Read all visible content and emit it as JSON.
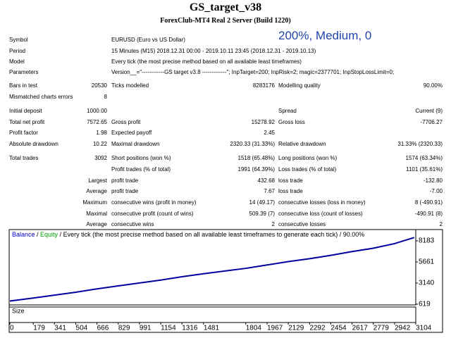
{
  "header": {
    "title": "GS_target_v38",
    "subtitle": "ForexClub-MT4 Real 2 Server (Build 1220)",
    "overlay": "200%, Medium, 0"
  },
  "info": [
    [
      "Symbol",
      "EURUSD (Euro vs US Dollar)"
    ],
    [
      "Period",
      "15 Minutes (M15) 2018.12.31 00:00 - 2019.10.11 23:45 (2018.12.31 - 2019.10.13)"
    ],
    [
      "Model",
      "Every tick (the most precise method based on all available least timeframes)"
    ],
    [
      "Parameters",
      "Version__=\"------------GS target v3.8 -------------\"; InpTarget=200; InpRisk=2; magic=2377701; InpStopLossLimit=0;"
    ]
  ],
  "stats": [
    [
      "Bars in test",
      "20530",
      "Ticks modelled",
      "8283176",
      "Modelling quality",
      "90.00%"
    ],
    [
      "Mismatched charts errors",
      "8",
      null,
      null,
      null,
      null
    ],
    [
      "Initial deposit",
      "1000.00",
      null,
      null,
      "Spread",
      "Current (9)"
    ],
    [
      "Total net profit",
      "7572.65",
      "Gross profit",
      "15278.92",
      "Gross loss",
      "-7706.27"
    ],
    [
      "Profit factor",
      "1.98",
      "Expected payoff",
      "2.45",
      null,
      null
    ],
    [
      "Absolute drawdown",
      "10.22",
      "Maximal drawdown",
      "2320.33 (31.33%)",
      "Relative drawdown",
      "31.33% (2320.33)"
    ],
    [
      "Total trades",
      "3092",
      "Short positions (won %)",
      "1518 (65.48%)",
      "Long positions (won %)",
      "1574 (63.34%)"
    ],
    [
      null,
      null,
      "Profit trades (% of total)",
      "1991 (64.39%)",
      "Loss trades (% of total)",
      "1101 (35.61%)"
    ],
    [
      "Largest",
      null,
      "profit trade",
      "432.68",
      "loss trade",
      "-132.80"
    ],
    [
      "Average",
      null,
      "profit trade",
      "7.67",
      "loss trade",
      "-7.00"
    ],
    [
      "Maximum",
      null,
      "consecutive wins (profit in money)",
      "14 (49.17)",
      "consecutive losses (loss in money)",
      "8 (-490.91)"
    ],
    [
      "Maximal",
      null,
      "consecutive profit (count of wins)",
      "509.39 (7)",
      "consecutive loss (count of losses)",
      "-490.91 (8)"
    ],
    [
      "Average",
      null,
      "consecutive wins",
      "2",
      "consecutive losses",
      "2"
    ]
  ],
  "chart_data": {
    "type": "line",
    "legend": [
      "Balance",
      "Equity"
    ],
    "caption": " / Every tick (the most precise method based on all available least timeframes to generate each tick) / 90.00%",
    "size_label": "Size",
    "x": [
      0,
      179,
      341,
      504,
      666,
      829,
      991,
      1154,
      1316,
      1481,
      1804,
      1967,
      2129,
      2292,
      2454,
      2617,
      2779,
      2942,
      3092
    ],
    "series": [
      {
        "name": "Balance",
        "color": "#0000a0",
        "values": [
          1000,
          1350,
          1700,
          2050,
          2450,
          2800,
          3150,
          3500,
          3900,
          4250,
          4900,
          5300,
          5700,
          6050,
          6450,
          6900,
          7300,
          7850,
          8573
        ]
      }
    ],
    "xlim": [
      0,
      3104
    ],
    "ylim": [
      535,
      9359
    ],
    "xticks": [
      0,
      179,
      341,
      504,
      666,
      829,
      991,
      1154,
      1316,
      1481,
      1804,
      1967,
      2129,
      2292,
      2454,
      2617,
      2779,
      2942,
      3104
    ],
    "yticks": [
      619,
      3140,
      5661,
      8183
    ]
  }
}
